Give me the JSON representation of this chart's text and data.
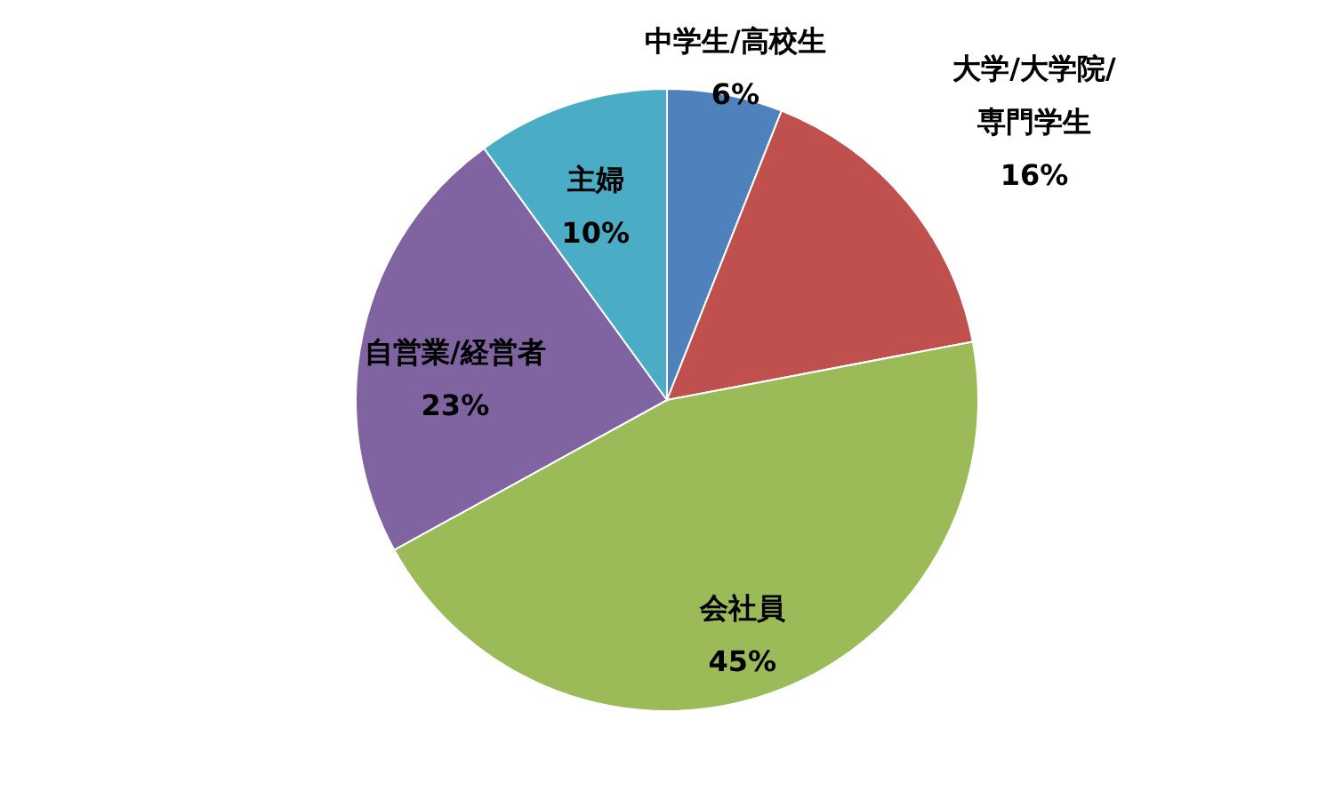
{
  "chart_data": {
    "type": "pie",
    "categories": [
      "中学生/高校生",
      "大学/大学院/専門学生",
      "会社員",
      "自営業/経営者",
      "主婦"
    ],
    "values": [
      6,
      16,
      45,
      23,
      10
    ],
    "value_labels": [
      "6%",
      "16%",
      "45%",
      "23%",
      "10%"
    ],
    "colors": [
      "#4f81bd",
      "#c0504d",
      "#9bbb59",
      "#8064a2",
      "#4bacc6"
    ]
  }
}
